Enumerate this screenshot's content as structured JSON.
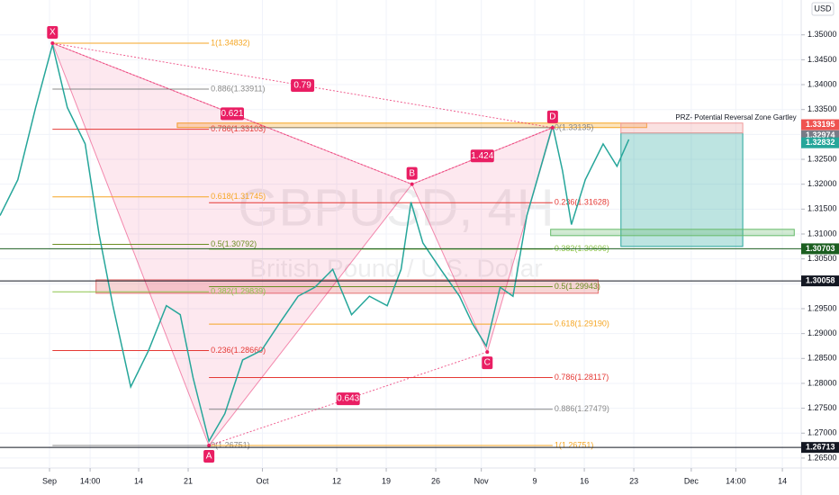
{
  "chart_data": {
    "type": "line",
    "title": "GBPUSD, 4H",
    "subtitle": "British Pound / U.S. Dollar",
    "currency": "USD",
    "color": "#26a69a",
    "xlim": [
      -5,
      75.9
    ],
    "xticks": [
      {
        "value": 0,
        "label": "Sep"
      },
      {
        "value": 4.1,
        "label": "14:00"
      },
      {
        "value": 9,
        "label": "14"
      },
      {
        "value": 14,
        "label": "21"
      },
      {
        "value": 21.5,
        "label": "Oct"
      },
      {
        "value": 29,
        "label": "12"
      },
      {
        "value": 34,
        "label": "19"
      },
      {
        "value": 39,
        "label": "26"
      },
      {
        "value": 43.6,
        "label": "Nov"
      },
      {
        "value": 49,
        "label": "9"
      },
      {
        "value": 54,
        "label": "16"
      },
      {
        "value": 59,
        "label": "23"
      },
      {
        "value": 64.8,
        "label": "Dec"
      },
      {
        "value": 69.3,
        "label": "14:00"
      },
      {
        "value": 74,
        "label": "14"
      }
    ],
    "ylim": [
      1.263,
      1.357
    ],
    "yticks": [
      {
        "value": 1.265,
        "label": "1.26500"
      },
      {
        "value": 1.27,
        "label": "1.27000"
      },
      {
        "value": 1.275,
        "label": "1.27500"
      },
      {
        "value": 1.28,
        "label": "1.28000"
      },
      {
        "value": 1.285,
        "label": "1.28500"
      },
      {
        "value": 1.29,
        "label": "1.29000"
      },
      {
        "value": 1.295,
        "label": "1.29500"
      },
      {
        "value": 1.3,
        "label": "1.30000"
      },
      {
        "value": 1.305,
        "label": "1.30500"
      },
      {
        "value": 1.31,
        "label": "1.31000"
      },
      {
        "value": 1.315,
        "label": "1.31500"
      },
      {
        "value": 1.32,
        "label": "1.32000"
      },
      {
        "value": 1.325,
        "label": "1.32500"
      },
      {
        "value": 1.33,
        "label": "1.33000"
      },
      {
        "value": 1.335,
        "label": "1.33500"
      },
      {
        "value": 1.34,
        "label": "1.34000"
      },
      {
        "value": 1.345,
        "label": "1.34500"
      },
      {
        "value": 1.35,
        "label": "1.35000"
      }
    ],
    "x": [
      -5,
      -3.2,
      -1.4,
      0.3,
      1.8,
      3.6,
      5,
      6.4,
      8.2,
      10,
      11.8,
      13.2,
      14.5,
      16.1,
      17.7,
      19.5,
      21.4,
      23.2,
      25.1,
      26.8,
      28.6,
      30.5,
      32.3,
      34.1,
      35.5,
      36.5,
      37.7,
      39.5,
      41.4,
      42.7,
      44.1,
      45.5,
      46.8,
      48.2,
      49.5,
      50.8,
      51.8,
      52.7,
      54.1,
      55.9,
      57.3,
      58.5
    ],
    "values": [
      1.3137,
      1.3209,
      1.3354,
      1.348,
      1.3354,
      1.3281,
      1.31,
      1.2956,
      1.2793,
      1.2866,
      1.2956,
      1.2938,
      1.2811,
      1.2684,
      1.2739,
      1.2847,
      1.2866,
      1.292,
      1.2975,
      1.2993,
      1.3029,
      1.2938,
      1.2975,
      1.2956,
      1.3029,
      1.3164,
      1.3082,
      1.3029,
      1.2975,
      1.292,
      1.2875,
      1.2993,
      1.2975,
      1.3137,
      1.3227,
      1.3318,
      1.3227,
      1.3119,
      1.3209,
      1.3281,
      1.3236,
      1.329
    ],
    "pattern": {
      "name": "PRZ- Potential Reversal Zone Gartley",
      "points": [
        {
          "label": "X",
          "x": 0.3,
          "y": 1.34832
        },
        {
          "label": "A",
          "x": 16.1,
          "y": 1.26751
        },
        {
          "label": "B",
          "x": 36.6,
          "y": 1.32
        },
        {
          "label": "C",
          "x": 44.2,
          "y": 1.2863
        },
        {
          "label": "D",
          "x": 50.8,
          "y": 1.33135
        }
      ],
      "ratios": [
        {
          "label": "0.79",
          "from": 0,
          "to": 4
        },
        {
          "label": "0.621",
          "from": 0,
          "to": 2
        },
        {
          "label": "1.424",
          "from": 2,
          "to": 4
        },
        {
          "label": "0.643",
          "from": 1,
          "to": 3
        }
      ]
    },
    "fib_left": [
      {
        "label": "1(1.34832)",
        "price": 1.34832,
        "color": "#f5a623"
      },
      {
        "label": "0.886(1.33911)",
        "price": 1.33911,
        "color": "#888888"
      },
      {
        "label": "0.786(1.33103)",
        "price": 1.33103,
        "color": "#e53935"
      },
      {
        "label": "0.618(1.31745)",
        "price": 1.31745,
        "color": "#f5a623"
      },
      {
        "label": "0.5(1.30792)",
        "price": 1.30792,
        "color": "#6b8e23"
      },
      {
        "label": "0.382(1.29839)",
        "price": 1.29839,
        "color": "#8bc34a"
      },
      {
        "label": "0.236(1.28660)",
        "price": 1.2866,
        "color": "#e53935"
      },
      {
        "label": "0(1.26751)",
        "price": 1.26751,
        "color": "#888888"
      }
    ],
    "fib_right": [
      {
        "label": "0(1.33135)",
        "price": 1.33135,
        "color": "#888888"
      },
      {
        "label": "0.236(1.31628)",
        "price": 1.31628,
        "color": "#e53935"
      },
      {
        "label": "0.382(1.30696)",
        "price": 1.30696,
        "color": "#8bc34a"
      },
      {
        "label": "0.5(1.29943)",
        "price": 1.29943,
        "color": "#6b8e23"
      },
      {
        "label": "0.618(1.29190)",
        "price": 1.2919,
        "color": "#f5a623"
      },
      {
        "label": "0.786(1.28117)",
        "price": 1.28117,
        "color": "#e53935"
      },
      {
        "label": "0.886(1.27479)",
        "price": 1.27479,
        "color": "#888888"
      },
      {
        "label": "1(1.26751)",
        "price": 1.26751,
        "color": "#f5a623"
      }
    ],
    "zones": [
      {
        "x": [
          4.7,
          55.4
        ],
        "y": [
          1.2981,
          1.3008
        ],
        "color": "#e57373"
      },
      {
        "x": [
          12.9,
          60.3
        ],
        "y": [
          1.33138,
          1.33228
        ],
        "color": "#f5a623"
      },
      {
        "x": [
          57.7,
          70
        ],
        "y": [
          1.3075,
          1.33029
        ],
        "color": "#26a69a"
      },
      {
        "x": [
          57.7,
          70
        ],
        "y": [
          1.33029,
          1.33228
        ],
        "color": "#ef9a9a"
      },
      {
        "x": [
          50.6,
          75.2
        ],
        "y": [
          1.30967,
          1.31094
        ],
        "color": "#66bb6a"
      }
    ],
    "price_tags": [
      {
        "label": "1.33195",
        "price": 1.33195,
        "color": "#ef5350",
        "line": false
      },
      {
        "label": "1.32974",
        "price": 1.32974,
        "color": "#787b86",
        "line": false
      },
      {
        "label": "1.32832",
        "price": 1.32832,
        "color": "#26a69a",
        "line": false
      },
      {
        "label": "1.30703",
        "price": 1.30703,
        "color": "#1b5e20",
        "line": true
      },
      {
        "label": "1.30058",
        "price": 1.30058,
        "color": "#131722",
        "line": true
      },
      {
        "label": "1.26713",
        "price": 1.26713,
        "color": "#131722",
        "line": true
      }
    ]
  }
}
